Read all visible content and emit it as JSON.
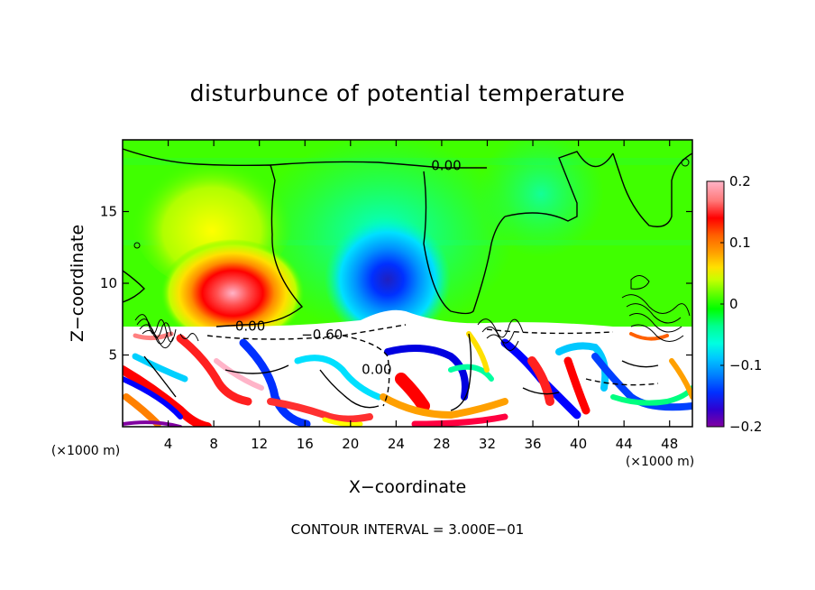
{
  "chart_data": {
    "type": "heatmap",
    "title": "disturbunce of potential temperature",
    "xlabel": "X−coordinate",
    "ylabel": "Z−coordinate",
    "x_unit": "(×1000 m)",
    "y_unit": "(×1000 m)",
    "xlim": [
      0,
      50
    ],
    "ylim": [
      0,
      20
    ],
    "x_ticks": [
      4,
      8,
      12,
      16,
      20,
      24,
      28,
      32,
      36,
      40,
      44,
      48
    ],
    "y_ticks": [
      5,
      10,
      15
    ],
    "footer": "CONTOUR INTERVAL = 3.000E−01",
    "contour_labels": [
      {
        "text": "0.00",
        "x": 28.4,
        "z": 18.2
      },
      {
        "text": "0.00",
        "x": 11.2,
        "z": 7.0
      },
      {
        "text": "−0.60",
        "x": 17.5,
        "z": 6.4
      },
      {
        "text": "0.00",
        "x": 22.3,
        "z": 4.0
      }
    ],
    "colorbar": {
      "min": -0.2,
      "max": 0.2,
      "tick_labels": [
        "0.2",
        "0.1",
        "0",
        "−0.1",
        "−0.2"
      ],
      "tick_values": [
        0.2,
        0.1,
        0,
        -0.1,
        -0.2
      ],
      "colors": [
        "#ffb4c8",
        "#ff7878",
        "#ff0000",
        "#ff6000",
        "#ffa000",
        "#ffd200",
        "#ffff00",
        "#a0ff00",
        "#00ff00",
        "#00ff80",
        "#00ffd0",
        "#00d8ff",
        "#0096ff",
        "#0050ff",
        "#0000ff",
        "#4000c0",
        "#8000a0"
      ]
    },
    "regions": [
      {
        "name": "positive-blob",
        "x": 9.8,
        "z": 9.5,
        "value": 0.2
      },
      {
        "name": "negative-blob",
        "x": 23.5,
        "z": 10.0,
        "value": -0.16
      }
    ]
  }
}
